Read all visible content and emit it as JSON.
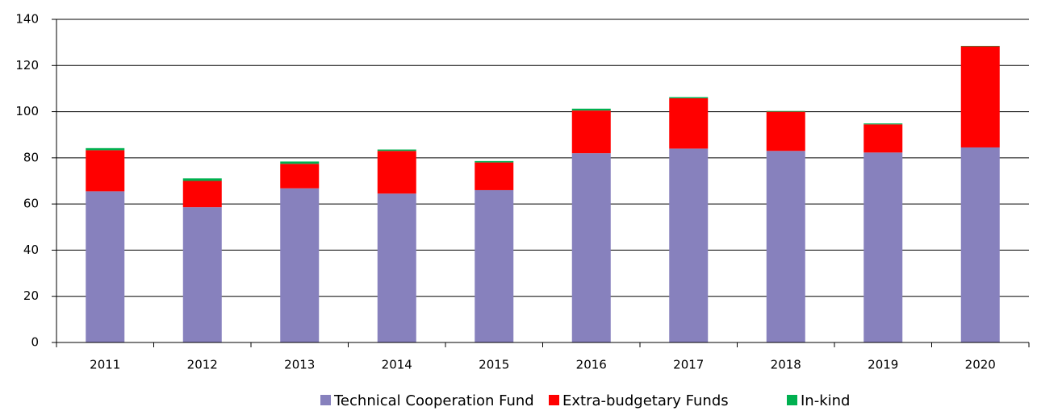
{
  "chart_data": {
    "type": "stacked_bar",
    "categories": [
      "2011",
      "2012",
      "2013",
      "2014",
      "2015",
      "2016",
      "2017",
      "2018",
      "2019",
      "2020"
    ],
    "series": [
      {
        "name": "Technical Cooperation Fund",
        "color": "#8781bd",
        "values": [
          65.5,
          58.6,
          66.8,
          64.5,
          66.0,
          82.0,
          84.0,
          83.0,
          82.3,
          84.5
        ]
      },
      {
        "name": "Extra-budgetary Funds",
        "color": "#ff0000",
        "values": [
          17.8,
          11.4,
          10.6,
          18.5,
          12.0,
          18.5,
          21.8,
          17.0,
          12.2,
          43.8
        ]
      },
      {
        "name": "In-kind",
        "color": "#00b050",
        "values": [
          0.9,
          1.1,
          1.0,
          0.6,
          0.6,
          0.8,
          0.5,
          0.3,
          0.4,
          0.2
        ]
      }
    ],
    "ylim": [
      0,
      140
    ],
    "yticks": [
      0,
      20,
      40,
      60,
      80,
      100,
      120,
      140
    ],
    "grid": true,
    "legend": "bottom"
  }
}
